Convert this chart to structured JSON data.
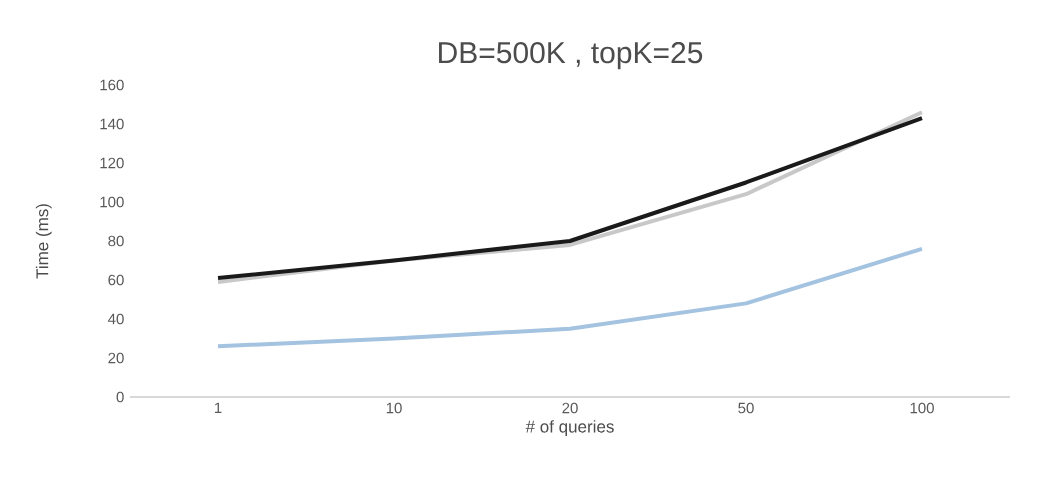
{
  "chart_data": {
    "type": "line",
    "title": "DB=500K , topK=25",
    "xlabel": "# of queries",
    "ylabel": "Time (ms)",
    "categories": [
      "1",
      "10",
      "20",
      "50",
      "100"
    ],
    "series": [
      {
        "color": "#c8c8c8",
        "values": [
          59,
          70,
          78,
          104,
          146
        ]
      },
      {
        "color": "#1a1a1a",
        "values": [
          61,
          70,
          80,
          110,
          143
        ]
      },
      {
        "color": "#a4c3e0",
        "values": [
          26,
          30,
          35,
          48,
          76
        ]
      }
    ],
    "ylim": [
      0,
      160
    ],
    "yticks": [
      0,
      20,
      40,
      60,
      80,
      100,
      120,
      140,
      160
    ],
    "grid": false,
    "marker": "none",
    "line_style": "solid"
  }
}
